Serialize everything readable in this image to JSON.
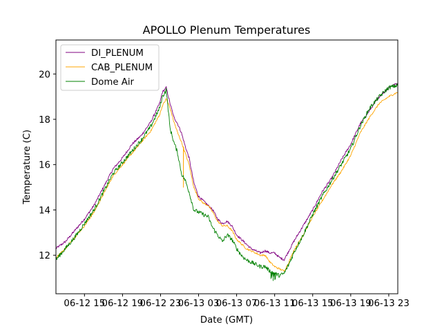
{
  "chart_data": {
    "type": "line",
    "title": "APOLLO Plenum Temperatures",
    "xlabel": "Date (GMT)",
    "ylabel": "Temperature (C)",
    "x_units": "hours since 06-12 00:00 GMT",
    "xlim": [
      12.0,
      47.95
    ],
    "ylim": [
      10.3,
      21.5
    ],
    "grid": false,
    "legend_position": "top-left",
    "x_ticks": [
      {
        "value": 15,
        "label": "06-12 15"
      },
      {
        "value": 19,
        "label": "06-12 19"
      },
      {
        "value": 23,
        "label": "06-12 23"
      },
      {
        "value": 27,
        "label": "06-13 03"
      },
      {
        "value": 31,
        "label": "06-13 07"
      },
      {
        "value": 35,
        "label": "06-13 11"
      },
      {
        "value": 39,
        "label": "06-13 15"
      },
      {
        "value": 43,
        "label": "06-13 19"
      },
      {
        "value": 47,
        "label": "06-13 23"
      }
    ],
    "y_ticks": [
      {
        "value": 12,
        "label": "12"
      },
      {
        "value": 14,
        "label": "14"
      },
      {
        "value": 16,
        "label": "16"
      },
      {
        "value": 18,
        "label": "18"
      },
      {
        "value": 20,
        "label": "20"
      }
    ],
    "series": [
      {
        "name": "DI_PLENUM",
        "color": "#800080",
        "noise": 0.05,
        "x": [
          12.0,
          13.0,
          14.0,
          15.0,
          16.0,
          17.0,
          18.0,
          19.0,
          20.0,
          21.0,
          22.0,
          22.9,
          23.2,
          23.6,
          24.0,
          24.4,
          24.8,
          25.2,
          25.6,
          26.0,
          26.5,
          27.0,
          27.5,
          28.0,
          28.5,
          29.0,
          29.5,
          30.0,
          30.5,
          31.0,
          31.5,
          32.0,
          32.5,
          33.0,
          33.5,
          34.0,
          34.5,
          35.0,
          35.5,
          36.0,
          36.5,
          37.0,
          38.0,
          39.0,
          40.0,
          41.0,
          42.0,
          43.0,
          44.0,
          45.0,
          46.0,
          47.0,
          47.95
        ],
        "y": [
          12.3,
          12.6,
          13.1,
          13.6,
          14.2,
          15.0,
          15.8,
          16.3,
          16.9,
          17.3,
          17.9,
          18.7,
          19.2,
          19.4,
          18.7,
          18.1,
          17.8,
          17.4,
          16.8,
          16.3,
          15.2,
          14.6,
          14.4,
          14.2,
          14.0,
          13.6,
          13.4,
          13.5,
          13.3,
          12.9,
          12.7,
          12.5,
          12.3,
          12.2,
          12.1,
          12.2,
          12.1,
          12.1,
          11.9,
          11.8,
          12.2,
          12.6,
          13.3,
          14.0,
          14.8,
          15.4,
          16.2,
          16.9,
          17.8,
          18.4,
          19.0,
          19.4,
          19.6
        ]
      },
      {
        "name": "CAB_PLENUM",
        "color": "#FFA500",
        "noise": 0.04,
        "x": [
          12.0,
          13.0,
          14.0,
          15.0,
          16.0,
          17.0,
          18.0,
          19.0,
          20.0,
          21.0,
          22.0,
          22.9,
          23.2,
          23.6,
          24.0,
          24.4,
          24.8,
          25.2,
          25.6,
          26.0,
          26.5,
          27.0,
          27.5,
          28.0,
          28.5,
          29.0,
          29.5,
          30.0,
          30.5,
          31.0,
          31.5,
          32.0,
          32.5,
          33.0,
          33.5,
          34.0,
          34.5,
          35.0,
          35.5,
          36.0,
          36.5,
          37.0,
          38.0,
          39.0,
          40.0,
          41.0,
          42.0,
          43.0,
          44.0,
          45.0,
          46.0,
          47.0,
          47.95
        ],
        "y": [
          11.9,
          12.3,
          12.8,
          13.3,
          13.9,
          14.7,
          15.5,
          16.0,
          16.5,
          17.0,
          17.5,
          18.2,
          18.6,
          18.9,
          18.5,
          17.9,
          17.4,
          17.0,
          16.5,
          16.0,
          15.0,
          14.5,
          14.3,
          14.2,
          13.9,
          13.5,
          13.3,
          13.3,
          13.1,
          12.7,
          12.5,
          12.3,
          12.2,
          12.1,
          12.0,
          12.0,
          11.7,
          11.5,
          11.4,
          11.3,
          11.7,
          12.2,
          12.9,
          13.7,
          14.4,
          15.1,
          15.7,
          16.4,
          17.4,
          18.1,
          18.7,
          19.0,
          19.2
        ]
      },
      {
        "name": "Dome Air",
        "color": "#008000",
        "noise": 0.09,
        "x": [
          12.0,
          13.0,
          14.0,
          15.0,
          16.0,
          17.0,
          18.0,
          19.0,
          20.0,
          21.0,
          22.0,
          22.9,
          23.2,
          23.6,
          24.0,
          24.4,
          24.8,
          25.2,
          25.6,
          26.0,
          26.5,
          27.0,
          27.5,
          28.0,
          28.5,
          29.0,
          29.5,
          30.0,
          30.5,
          31.0,
          31.5,
          32.0,
          32.5,
          33.0,
          33.5,
          34.0,
          34.5,
          35.0,
          35.5,
          36.0,
          36.5,
          37.0,
          38.0,
          39.0,
          40.0,
          41.0,
          42.0,
          43.0,
          44.0,
          45.0,
          46.0,
          47.0,
          47.95
        ],
        "y": [
          11.8,
          12.3,
          12.8,
          13.4,
          14.0,
          14.8,
          15.6,
          16.1,
          16.6,
          17.1,
          17.7,
          18.5,
          19.0,
          19.3,
          17.6,
          17.0,
          16.5,
          15.6,
          15.3,
          14.8,
          14.0,
          13.9,
          13.8,
          13.7,
          13.2,
          12.9,
          12.6,
          12.9,
          12.7,
          12.3,
          12.0,
          11.8,
          11.7,
          11.6,
          11.5,
          11.5,
          11.3,
          11.2,
          11.1,
          11.2,
          11.6,
          12.1,
          12.9,
          13.8,
          14.6,
          15.3,
          16.0,
          16.7,
          17.7,
          18.5,
          19.0,
          19.4,
          19.5
        ]
      }
    ],
    "annotations": [
      {
        "series": "CAB_PLENUM",
        "x": 25.4,
        "description": "spike down",
        "y_min": 15.0
      },
      {
        "series": "Dome Air",
        "x": 34.9,
        "description": "noisy dip",
        "y_min": 10.7
      }
    ]
  }
}
